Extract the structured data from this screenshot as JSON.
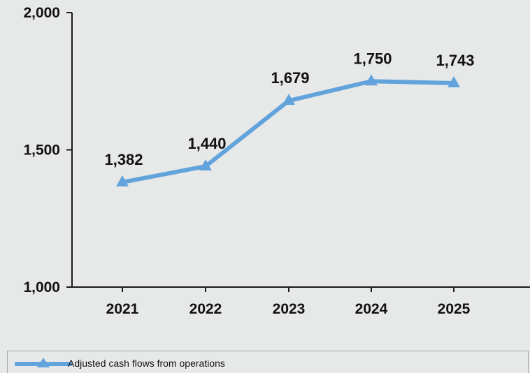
{
  "chart_data": {
    "type": "line",
    "categories": [
      "2021",
      "2022",
      "2023",
      "2024",
      "2025"
    ],
    "series": [
      {
        "name": "Adjusted cash flows from operations",
        "values": [
          1382,
          1440,
          1679,
          1750,
          1743
        ],
        "labels": [
          "1,382",
          "1,440",
          "1,679",
          "1,750",
          "1,743"
        ],
        "color": "#62a3dc",
        "marker": "triangle"
      }
    ],
    "yticks": [
      "1,000",
      "1,500",
      "2,000"
    ],
    "ylim": [
      1000,
      2000
    ],
    "legend_position": "bottom-left",
    "grid": false
  }
}
